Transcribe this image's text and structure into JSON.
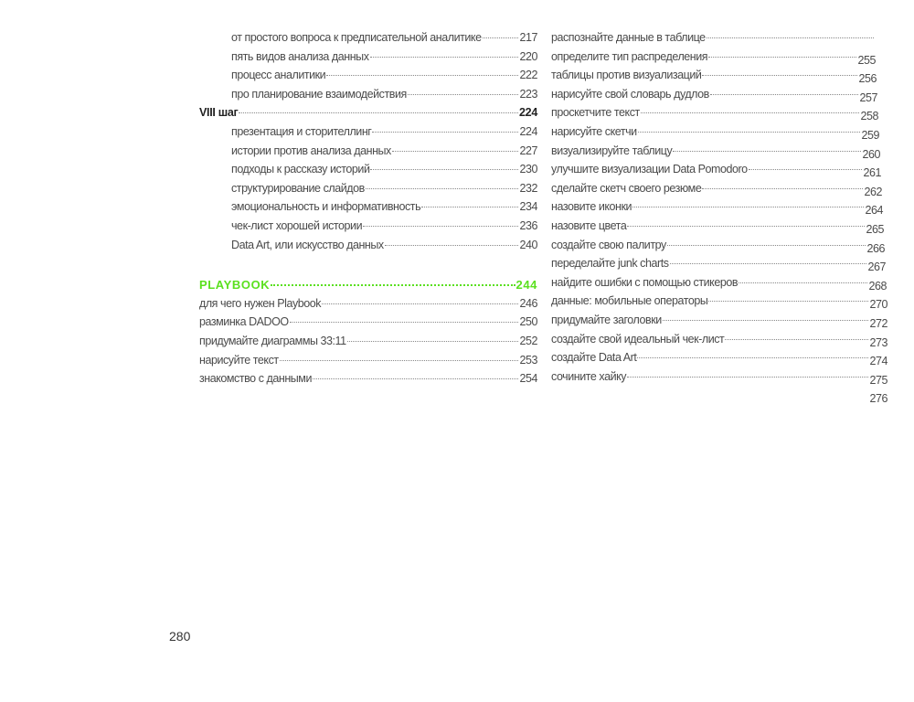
{
  "left_column": [
    {
      "title": "от простого вопроса к предписательной аналитике",
      "page": "217",
      "level": "sub"
    },
    {
      "title": "пять видов анализа данных",
      "page": "220",
      "level": "sub"
    },
    {
      "title": "процесс аналитики",
      "page": "222",
      "level": "sub"
    },
    {
      "title": "про планирование взаимодействия",
      "page": "223",
      "level": "sub"
    },
    {
      "title": "VIII шаг",
      "page": "224",
      "level": "bold"
    },
    {
      "title": "презентация и сторителлинг",
      "page": "224",
      "level": "sub"
    },
    {
      "title": "истории против анализа данных",
      "page": "227",
      "level": "sub"
    },
    {
      "title": "подходы к рассказу историй",
      "page": "230",
      "level": "sub"
    },
    {
      "title": "структурирование слайдов",
      "page": "232",
      "level": "sub"
    },
    {
      "title": "эмоциональность и информативность",
      "page": "234",
      "level": "sub"
    },
    {
      "title": "чек-лист хорошей истории",
      "page": "236",
      "level": "sub"
    },
    {
      "title": "Data Art, или искусство данных",
      "page": "240",
      "level": "sub"
    },
    {
      "gap": true
    },
    {
      "title": "PLAYBOOK",
      "page": "244",
      "level": "accent"
    },
    {
      "title": "для чего нужен Playbook",
      "page": "246",
      "level": "top"
    },
    {
      "title": "разминка DADOO",
      "page": "250",
      "level": "top"
    },
    {
      "title": "придумайте диаграммы 33:11",
      "page": "252",
      "level": "top"
    },
    {
      "title": "нарисуйте текст",
      "page": "253",
      "level": "top"
    },
    {
      "title": "знакомство с данными",
      "page": "254",
      "level": "top"
    }
  ],
  "right_column": [
    {
      "title": "распознайте данные в таблице",
      "page": ""
    },
    {
      "title": "определите тип распределения",
      "page": "255"
    },
    {
      "title": "таблицы против визуализаций",
      "page": "256"
    },
    {
      "title": "нарисуйте свой словарь дудлов",
      "page": "257"
    },
    {
      "title": "проскетчите текст",
      "page": "258"
    },
    {
      "title": "нарисуйте скетчи",
      "page": "259"
    },
    {
      "title": "визуализируйте таблицу",
      "page": "260"
    },
    {
      "title": "улучшите визуализации Data Pomodoro",
      "page": "261"
    },
    {
      "title": "сделайте скетч своего резюме",
      "page": "262"
    },
    {
      "title": "назовите иконки",
      "page": "264"
    },
    {
      "title": "назовите цвета",
      "page": "265"
    },
    {
      "title": "создайте свою палитру",
      "page": "266"
    },
    {
      "title": "переделайте junk charts",
      "page": "267"
    },
    {
      "title": "найдите ошибки с помощью стикеров",
      "page": "268"
    },
    {
      "title": "данные: мобильные операторы",
      "page": "270"
    },
    {
      "title": "придумайте заголовки",
      "page": "272"
    },
    {
      "title": "создайте свой идеальный чек-лист",
      "page": "273"
    },
    {
      "title": "создайте Data Art",
      "page": "274"
    },
    {
      "title": "сочините хайку",
      "page": "275"
    }
  ],
  "right_column_trailing_page": "276",
  "page_number": "280",
  "colors": {
    "accent": "#5be01f",
    "text": "#4a4a4a"
  }
}
